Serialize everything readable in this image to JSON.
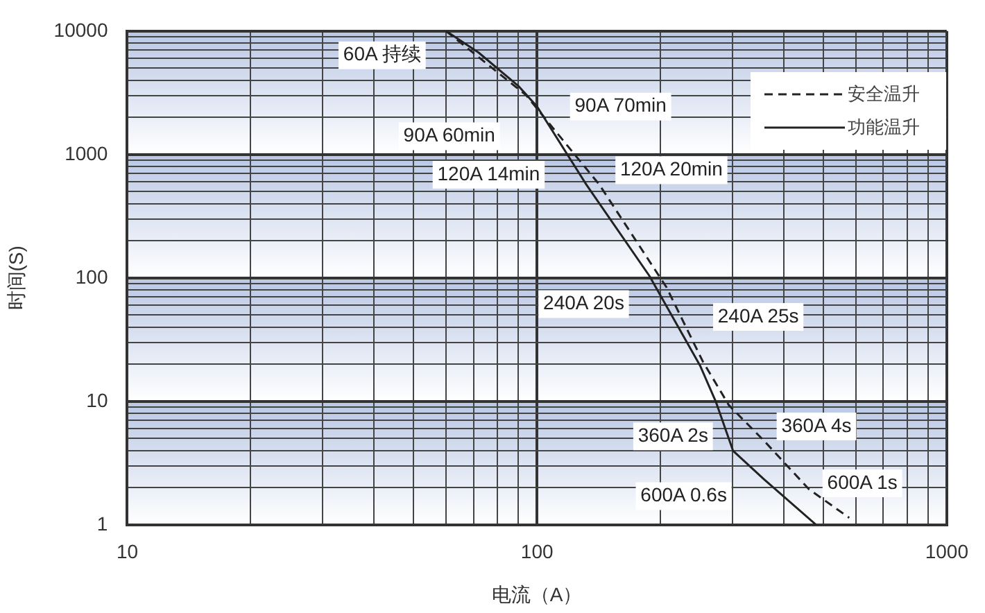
{
  "chart_data": {
    "type": "line",
    "xlabel": "电流（A）",
    "ylabel": "时间(S)",
    "log": "xy",
    "grid": true,
    "legend": "top right",
    "marker": "none",
    "xlim": [
      10,
      1000
    ],
    "ylim": [
      1,
      10000
    ],
    "xticks": [
      10,
      {
        "value": 20,
        "label": null
      },
      {
        "value": 30,
        "label": null
      },
      {
        "value": 40,
        "label": null
      },
      {
        "value": 50,
        "label": null
      },
      {
        "value": 60,
        "label": null
      },
      {
        "value": 70,
        "label": null
      },
      {
        "value": 80,
        "label": null
      },
      {
        "value": 90,
        "label": null
      },
      100,
      {
        "value": 200,
        "label": null
      },
      {
        "value": 300,
        "label": null
      },
      {
        "value": 400,
        "label": null
      },
      {
        "value": 500,
        "label": null
      },
      {
        "value": 600,
        "label": null
      },
      {
        "value": 700,
        "label": null
      },
      {
        "value": 800,
        "label": null
      },
      {
        "value": 900,
        "label": null
      },
      1000
    ],
    "yticks": [
      1,
      {
        "value": 2,
        "label": null
      },
      {
        "value": 3,
        "label": null
      },
      {
        "value": 4,
        "label": null
      },
      {
        "value": 5,
        "label": null
      },
      {
        "value": 6,
        "label": null
      },
      {
        "value": 7,
        "label": null
      },
      {
        "value": 8,
        "label": null
      },
      {
        "value": 9,
        "label": null
      },
      10,
      {
        "value": 20,
        "label": null
      },
      {
        "value": 30,
        "label": null
      },
      {
        "value": 40,
        "label": null
      },
      {
        "value": 50,
        "label": null
      },
      {
        "value": 60,
        "label": null
      },
      {
        "value": 70,
        "label": null
      },
      {
        "value": 80,
        "label": null
      },
      {
        "value": 90,
        "label": null
      },
      100,
      {
        "value": 200,
        "label": null
      },
      {
        "value": 300,
        "label": null
      },
      {
        "value": 400,
        "label": null
      },
      {
        "value": 500,
        "label": null
      },
      {
        "value": 600,
        "label": null
      },
      {
        "value": 700,
        "label": null
      },
      {
        "value": 800,
        "label": null
      },
      {
        "value": 900,
        "label": null
      },
      1000,
      {
        "value": 2000,
        "label": null
      },
      {
        "value": 3000,
        "label": null
      },
      {
        "value": 4000,
        "label": null
      },
      {
        "value": 5000,
        "label": null
      },
      {
        "value": 6000,
        "label": null
      },
      {
        "value": 7000,
        "label": null
      },
      {
        "value": 8000,
        "label": null
      },
      {
        "value": 9000,
        "label": null
      },
      10000
    ],
    "series": [
      {
        "name": "安全温升",
        "color": "#222222",
        "line_style": "dashed",
        "x": [
          60,
          94,
          142,
          207,
          254,
          294,
          358,
          461,
          578
        ],
        "values": [
          10000,
          3030,
          569,
          84,
          21,
          9.3,
          4.8,
          1.94,
          1.14
        ]
      },
      {
        "name": "功能温升",
        "color": "#222222",
        "line_style": "solid",
        "x": [
          60,
          72,
          90,
          100,
          132,
          188,
          250,
          273,
          301,
          358,
          480
        ],
        "values": [
          10000,
          6700,
          3600,
          2450,
          569,
          104,
          19.5,
          10,
          3.97,
          2.34,
          1
        ]
      }
    ],
    "annotations": [
      "60A 持续",
      "90A 70min",
      "90A 60min",
      "120A 14min",
      "120A 20min",
      "240A 20s",
      "240A 25s",
      "360A 2s",
      "360A 4s",
      "600A 1s",
      "600A 0.6s"
    ]
  }
}
